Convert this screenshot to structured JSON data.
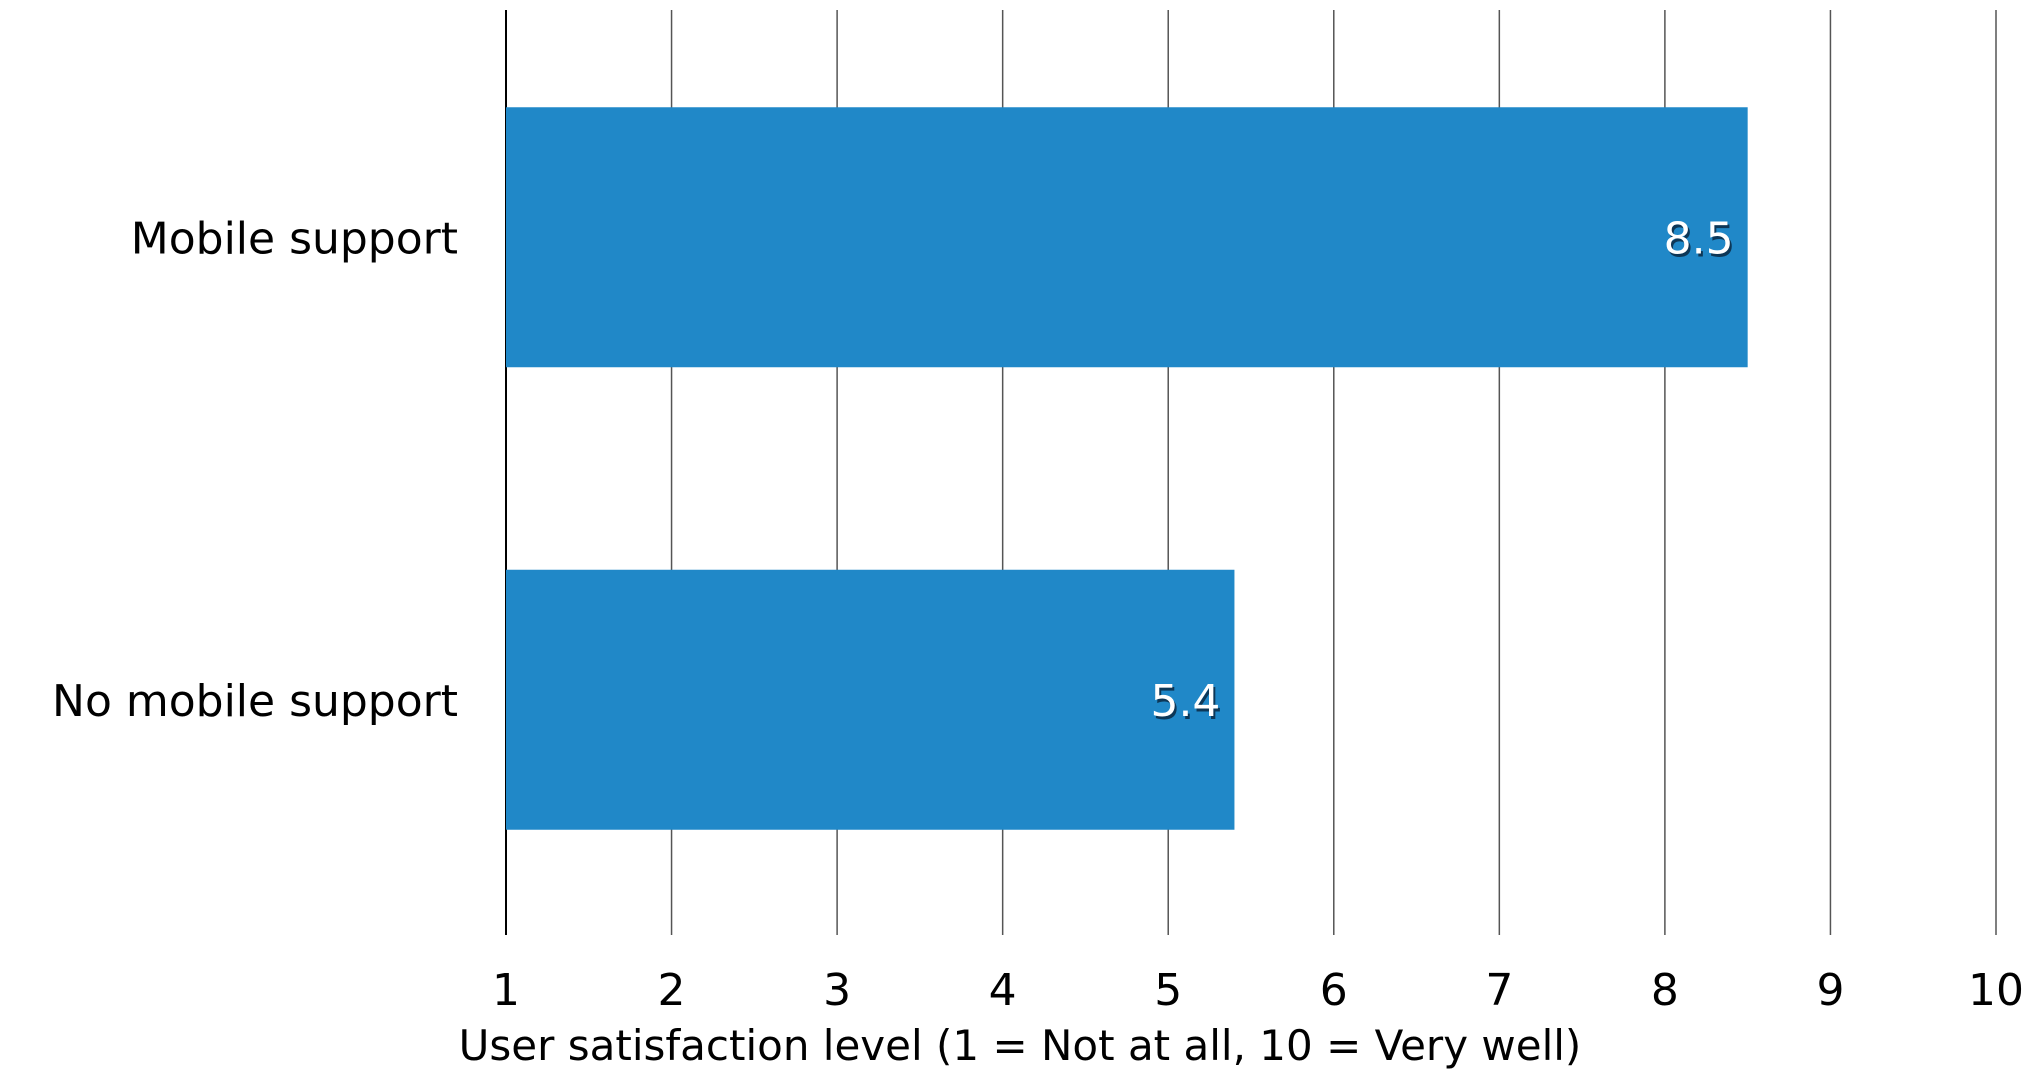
{
  "chart_data": {
    "type": "bar",
    "orientation": "horizontal",
    "categories": [
      "Mobile support",
      "No mobile support"
    ],
    "values": [
      8.5,
      5.4
    ],
    "data_labels": [
      "8.5",
      "5.4"
    ],
    "title": "",
    "xlabel": "User satisfaction level (1 = Not at all, 10 = Very well)",
    "ylabel": "",
    "xlim": [
      1,
      10
    ],
    "ticks": [
      "1",
      "2",
      "3",
      "4",
      "5",
      "6",
      "7",
      "8",
      "9",
      "10"
    ],
    "grid": "vertical",
    "legend": "none",
    "bar_color": "#2088c8",
    "grid_color": "#555555"
  }
}
